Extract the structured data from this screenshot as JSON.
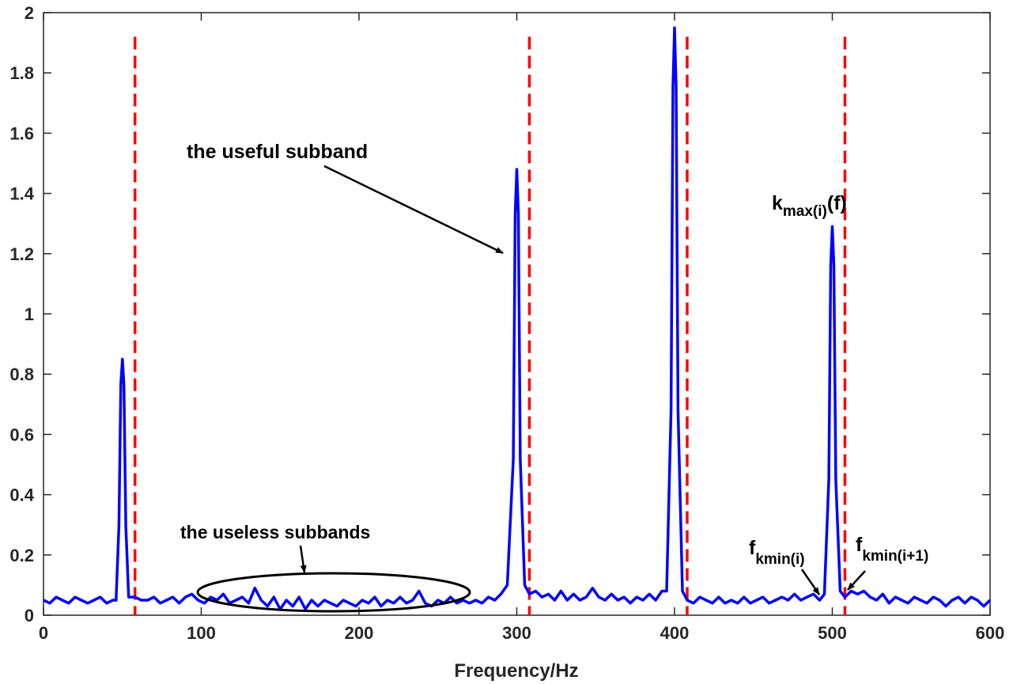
{
  "chart_data": {
    "type": "line",
    "xlabel": "Frequency/Hz",
    "ylabel": "",
    "xlim": [
      0,
      600
    ],
    "ylim": [
      0,
      2
    ],
    "xticks": [
      0,
      100,
      200,
      300,
      400,
      500,
      600
    ],
    "yticks": [
      0,
      0.2,
      0.4,
      0.6,
      0.8,
      1,
      1.2,
      1.4,
      1.6,
      1.8,
      2
    ],
    "grid": false,
    "colors": {
      "spectrum": "#0000ff",
      "boundaries": "#ff0000"
    },
    "spectrum": {
      "peaks": [
        {
          "x": 50,
          "y": 0.85
        },
        {
          "x": 300,
          "y": 1.48
        },
        {
          "x": 400,
          "y": 1.95
        },
        {
          "x": 500,
          "y": 1.29
        }
      ],
      "baseline": [
        [
          0,
          0.05
        ],
        [
          4,
          0.04
        ],
        [
          8,
          0.06
        ],
        [
          12,
          0.05
        ],
        [
          16,
          0.04
        ],
        [
          20,
          0.06
        ],
        [
          24,
          0.05
        ],
        [
          28,
          0.04
        ],
        [
          32,
          0.05
        ],
        [
          36,
          0.06
        ],
        [
          40,
          0.04
        ],
        [
          44,
          0.05
        ],
        [
          46,
          0.05
        ],
        [
          54,
          0.06
        ],
        [
          58,
          0.06
        ],
        [
          62,
          0.05
        ],
        [
          66,
          0.05
        ],
        [
          70,
          0.06
        ],
        [
          74,
          0.04
        ],
        [
          78,
          0.05
        ],
        [
          82,
          0.06
        ],
        [
          86,
          0.04
        ],
        [
          90,
          0.06
        ],
        [
          94,
          0.07
        ],
        [
          98,
          0.05
        ],
        [
          102,
          0.04
        ],
        [
          106,
          0.06
        ],
        [
          110,
          0.05
        ],
        [
          114,
          0.07
        ],
        [
          118,
          0.04
        ],
        [
          122,
          0.05
        ],
        [
          126,
          0.06
        ],
        [
          130,
          0.04
        ],
        [
          134,
          0.09
        ],
        [
          138,
          0.05
        ],
        [
          142,
          0.03
        ],
        [
          146,
          0.06
        ],
        [
          150,
          0.02
        ],
        [
          154,
          0.05
        ],
        [
          158,
          0.03
        ],
        [
          162,
          0.06
        ],
        [
          166,
          0.02
        ],
        [
          170,
          0.05
        ],
        [
          174,
          0.03
        ],
        [
          178,
          0.05
        ],
        [
          182,
          0.04
        ],
        [
          186,
          0.03
        ],
        [
          190,
          0.05
        ],
        [
          194,
          0.04
        ],
        [
          198,
          0.03
        ],
        [
          202,
          0.05
        ],
        [
          206,
          0.04
        ],
        [
          210,
          0.06
        ],
        [
          214,
          0.03
        ],
        [
          218,
          0.05
        ],
        [
          222,
          0.04
        ],
        [
          226,
          0.06
        ],
        [
          230,
          0.04
        ],
        [
          234,
          0.05
        ],
        [
          238,
          0.08
        ],
        [
          242,
          0.04
        ],
        [
          246,
          0.03
        ],
        [
          250,
          0.05
        ],
        [
          254,
          0.04
        ],
        [
          258,
          0.06
        ],
        [
          262,
          0.04
        ],
        [
          266,
          0.05
        ],
        [
          270,
          0.04
        ],
        [
          274,
          0.05
        ],
        [
          278,
          0.04
        ],
        [
          282,
          0.06
        ],
        [
          286,
          0.05
        ],
        [
          290,
          0.07
        ],
        [
          294,
          0.1
        ],
        [
          305,
          0.1
        ],
        [
          308,
          0.07
        ],
        [
          312,
          0.08
        ],
        [
          316,
          0.06
        ],
        [
          320,
          0.07
        ],
        [
          324,
          0.05
        ],
        [
          328,
          0.08
        ],
        [
          332,
          0.05
        ],
        [
          336,
          0.07
        ],
        [
          340,
          0.05
        ],
        [
          344,
          0.06
        ],
        [
          348,
          0.09
        ],
        [
          352,
          0.06
        ],
        [
          356,
          0.05
        ],
        [
          360,
          0.07
        ],
        [
          364,
          0.05
        ],
        [
          368,
          0.06
        ],
        [
          372,
          0.04
        ],
        [
          376,
          0.06
        ],
        [
          380,
          0.05
        ],
        [
          384,
          0.07
        ],
        [
          388,
          0.05
        ],
        [
          392,
          0.08
        ],
        [
          395,
          0.08
        ],
        [
          405,
          0.08
        ],
        [
          408,
          0.05
        ],
        [
          412,
          0.04
        ],
        [
          416,
          0.06
        ],
        [
          420,
          0.05
        ],
        [
          424,
          0.04
        ],
        [
          428,
          0.06
        ],
        [
          432,
          0.04
        ],
        [
          436,
          0.05
        ],
        [
          440,
          0.04
        ],
        [
          444,
          0.06
        ],
        [
          448,
          0.04
        ],
        [
          452,
          0.05
        ],
        [
          456,
          0.06
        ],
        [
          460,
          0.04
        ],
        [
          464,
          0.05
        ],
        [
          468,
          0.06
        ],
        [
          472,
          0.05
        ],
        [
          476,
          0.07
        ],
        [
          480,
          0.05
        ],
        [
          484,
          0.06
        ],
        [
          488,
          0.07
        ],
        [
          492,
          0.05
        ],
        [
          495,
          0.07
        ],
        [
          505,
          0.08
        ],
        [
          508,
          0.06
        ],
        [
          512,
          0.08
        ],
        [
          516,
          0.07
        ],
        [
          520,
          0.08
        ],
        [
          524,
          0.06
        ],
        [
          528,
          0.05
        ],
        [
          532,
          0.07
        ],
        [
          536,
          0.04
        ],
        [
          540,
          0.06
        ],
        [
          544,
          0.05
        ],
        [
          548,
          0.04
        ],
        [
          552,
          0.06
        ],
        [
          556,
          0.05
        ],
        [
          560,
          0.04
        ],
        [
          564,
          0.06
        ],
        [
          568,
          0.05
        ],
        [
          572,
          0.03
        ],
        [
          576,
          0.05
        ],
        [
          580,
          0.06
        ],
        [
          584,
          0.04
        ],
        [
          588,
          0.06
        ],
        [
          592,
          0.05
        ],
        [
          596,
          0.03
        ],
        [
          600,
          0.05
        ]
      ]
    },
    "boundaries": [
      58,
      308,
      408,
      508
    ],
    "annotations": {
      "useful": "the useful subband",
      "useless": "the useless subbands",
      "kmax_base": "k",
      "kmax_sub": "max(i)",
      "kmax_tail": "(f)",
      "fkmin_i_base": "f",
      "fkmin_i_sub": "kmin(i)",
      "fkmin_i1_base": "f",
      "fkmin_i1_sub": "kmin(i+1)"
    }
  }
}
